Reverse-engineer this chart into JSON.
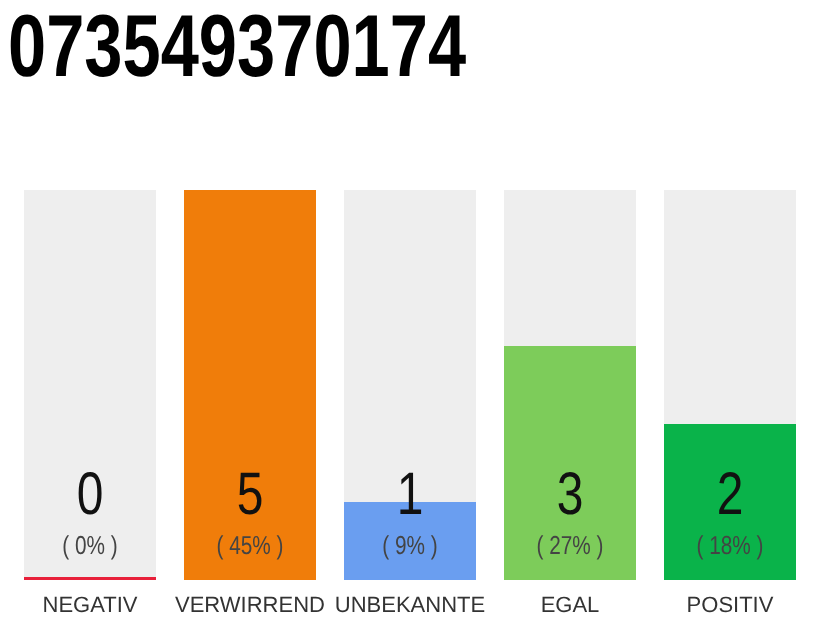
{
  "chart_data": {
    "type": "bar",
    "title": "073549370174",
    "categories": [
      "NEGATIV",
      "VERWIRREND",
      "UNBEKANNTE",
      "EGAL",
      "POSITIV"
    ],
    "values": [
      0,
      5,
      1,
      3,
      2
    ],
    "colors": [
      "#e8203a",
      "#f07d0a",
      "#6a9ef0",
      "#7dcc5a",
      "#0ab34a"
    ],
    "data_labels": true,
    "annotations": [
      "( 0% )",
      "( 45% )",
      "( 9% )",
      "( 27% )",
      "( 18% )"
    ]
  }
}
